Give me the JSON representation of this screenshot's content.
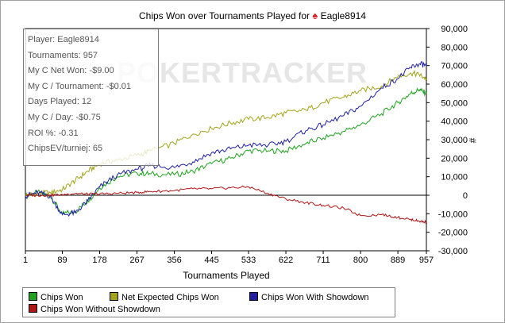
{
  "header": {
    "title": "Chips Won over Tournaments Played for",
    "player": "Eagle8914",
    "spade_icon": "♠"
  },
  "stats": {
    "lines": [
      "Player: Eagle8914",
      "Tournaments: 957",
      "My C Net Won: -$9.00",
      "My C / Tournament: -$0.01",
      "Days Played: 12",
      "My C / Day: -$0.75",
      "ROI %: -0.31",
      "ChipsEV/turniej: 65"
    ]
  },
  "watermark": "POKERTRACKER",
  "chart_data": {
    "type": "line",
    "title": "Chips Won over Tournaments Played for Eagle8914",
    "xlabel": "Tournaments Played",
    "ylabel": "#",
    "xlim": [
      1,
      957
    ],
    "ylim": [
      -30000,
      90000
    ],
    "x_ticks": [
      "1",
      "89",
      "178",
      "267",
      "356",
      "445",
      "533",
      "622",
      "711",
      "800",
      "889",
      "957"
    ],
    "y_ticks": [
      "90,000",
      "80,000",
      "70,000",
      "60,000",
      "50,000",
      "40,000",
      "30,000",
      "20,000",
      "10,000",
      "0",
      "-10,000",
      "-20,000",
      "-30,000"
    ],
    "x": [
      1,
      30,
      60,
      89,
      120,
      150,
      178,
      220,
      267,
      300,
      356,
      400,
      445,
      490,
      533,
      580,
      622,
      670,
      711,
      760,
      800,
      850,
      889,
      920,
      940,
      957
    ],
    "series": [
      {
        "name": "Chips Won",
        "color": "#1fa31f",
        "values": [
          -500,
          1500,
          -500,
          -10000,
          -9000,
          -3000,
          4000,
          10000,
          12000,
          11500,
          11000,
          13000,
          17000,
          20000,
          24000,
          24000,
          24000,
          28000,
          31000,
          34500,
          38000,
          44000,
          50000,
          55000,
          57000,
          55000
        ]
      },
      {
        "name": "Net Expected Chips Won",
        "color": "#a3a31a",
        "values": [
          0,
          1000,
          1500,
          3000,
          8000,
          13000,
          17000,
          19000,
          21500,
          24000,
          28000,
          33000,
          36000,
          39000,
          41000,
          42000,
          44500,
          46000,
          50000,
          53000,
          56500,
          59000,
          64000,
          66000,
          65000,
          63000
        ]
      },
      {
        "name": "Chips Won With Showdown",
        "color": "#1f1fa0",
        "values": [
          -500,
          1500,
          -500,
          -10500,
          -9500,
          -3000,
          4500,
          11000,
          14000,
          16000,
          15000,
          18000,
          23000,
          25000,
          27000,
          27000,
          29000,
          35000,
          38000,
          43000,
          48000,
          58000,
          63000,
          69000,
          71000,
          70000
        ]
      },
      {
        "name": "Chips Won Without Showdown",
        "color": "#b01515",
        "values": [
          0,
          0,
          0,
          300,
          1000,
          500,
          700,
          1000,
          1500,
          2000,
          2500,
          3500,
          3500,
          4000,
          4500,
          1000,
          -2000,
          -4000,
          -5500,
          -7000,
          -11000,
          -10500,
          -12000,
          -13000,
          -14000,
          -14500
        ]
      }
    ],
    "legend_position": "bottom-left",
    "grid": false
  }
}
